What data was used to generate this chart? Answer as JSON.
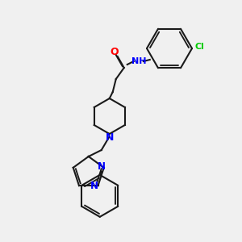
{
  "background_color": "#f0f0f0",
  "bond_color": "#1a1a1a",
  "atom_colors": {
    "N": "#0000ff",
    "O": "#ff0000",
    "Cl": "#00cc00",
    "C": "#1a1a1a",
    "H": "#1a1a1a"
  },
  "figsize": [
    3.0,
    3.0
  ],
  "dpi": 100
}
